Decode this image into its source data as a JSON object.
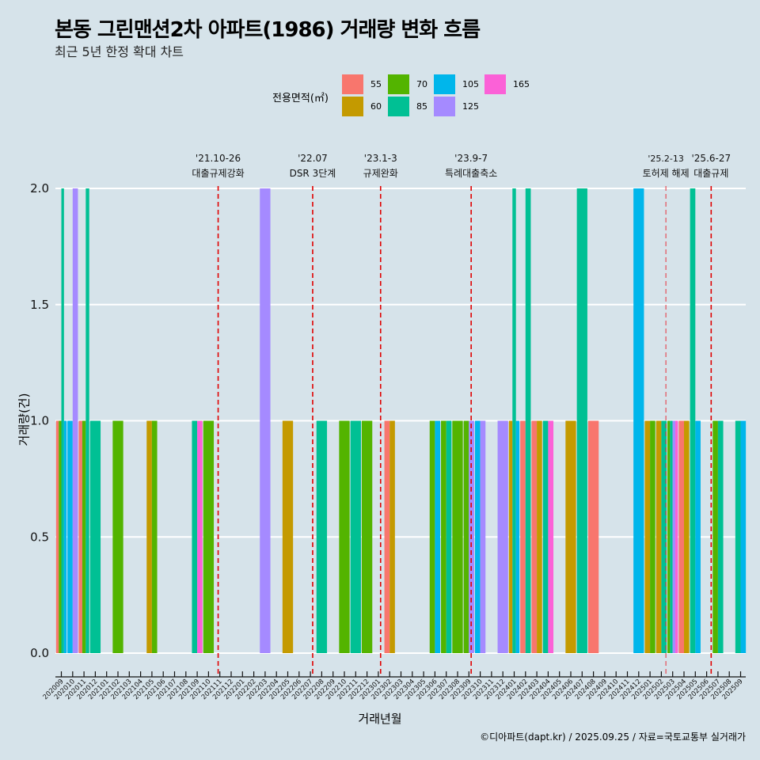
{
  "title": "본동 그린맨션2차 아파트(1986) 거래량 변화 흐름",
  "subtitle": "최근 5년 한정 확대 차트",
  "caption": "©디아파트(dapt.kr) / 2025.09.25 / 자료=국토교통부 실거래가",
  "legend": {
    "title": "전용면적(㎡)",
    "items": [
      {
        "label": "55",
        "color": "#F8766D"
      },
      {
        "label": "60",
        "color": "#C49A00"
      },
      {
        "label": "70",
        "color": "#53B400"
      },
      {
        "label": "85",
        "color": "#00C094"
      },
      {
        "label": "105",
        "color": "#00B6EB"
      },
      {
        "label": "125",
        "color": "#A58AFF"
      },
      {
        "label": "165",
        "color": "#FB61D7"
      }
    ]
  },
  "chart_data": {
    "type": "bar",
    "title": "본동 그린맨션2차 아파트(1986) 거래량 변화 흐름",
    "xlabel": "거래년월",
    "ylabel": "거래량(건)",
    "ylim": [
      0,
      2
    ],
    "yticks": [
      "0.0",
      "0.5",
      "1.0",
      "1.5",
      "2.0"
    ],
    "ytick_values": [
      0,
      0.5,
      1.0,
      1.5,
      2.0
    ],
    "grid": true,
    "legend_position": "top",
    "categories": [
      "202009",
      "202010",
      "202011",
      "202012",
      "202101",
      "202102",
      "202103",
      "202104",
      "202105",
      "202106",
      "202107",
      "202108",
      "202109",
      "202110",
      "202111",
      "202112",
      "202201",
      "202202",
      "202203",
      "202204",
      "202205",
      "202206",
      "202207",
      "202208",
      "202209",
      "202210",
      "202211",
      "202212",
      "202301",
      "202302",
      "202303",
      "202304",
      "202305",
      "202306",
      "202307",
      "202308",
      "202309",
      "202310",
      "202311",
      "202312",
      "202401",
      "202402",
      "202403",
      "202404",
      "202405",
      "202406",
      "202407",
      "202408",
      "202409",
      "202410",
      "202411",
      "202412",
      "202501",
      "202502",
      "202503",
      "202504",
      "202505",
      "202506",
      "202507",
      "202508",
      "202509"
    ],
    "bars": [
      {
        "month": "202009",
        "area": "55",
        "value": 1
      },
      {
        "month": "202009",
        "area": "70",
        "value": 1
      },
      {
        "month": "202009",
        "area": "85",
        "value": 2
      },
      {
        "month": "202009",
        "area": "105",
        "value": 1
      },
      {
        "month": "202010",
        "area": "105",
        "value": 1
      },
      {
        "month": "202010",
        "area": "125",
        "value": 2
      },
      {
        "month": "202011",
        "area": "55",
        "value": 1
      },
      {
        "month": "202011",
        "area": "70",
        "value": 1
      },
      {
        "month": "202011",
        "area": "85",
        "value": 2
      },
      {
        "month": "202012",
        "area": "85",
        "value": 1
      },
      {
        "month": "202102",
        "area": "70",
        "value": 1
      },
      {
        "month": "202105",
        "area": "60",
        "value": 1
      },
      {
        "month": "202105",
        "area": "70",
        "value": 1
      },
      {
        "month": "202109",
        "area": "85",
        "value": 1
      },
      {
        "month": "202109",
        "area": "165",
        "value": 1
      },
      {
        "month": "202110",
        "area": "70",
        "value": 1
      },
      {
        "month": "202203",
        "area": "125",
        "value": 2
      },
      {
        "month": "202205",
        "area": "60",
        "value": 1
      },
      {
        "month": "202208",
        "area": "85",
        "value": 1
      },
      {
        "month": "202210",
        "area": "70",
        "value": 1
      },
      {
        "month": "202211",
        "area": "85",
        "value": 1
      },
      {
        "month": "202212",
        "area": "70",
        "value": 1
      },
      {
        "month": "202302",
        "area": "55",
        "value": 1
      },
      {
        "month": "202302",
        "area": "60",
        "value": 1
      },
      {
        "month": "202306",
        "area": "70",
        "value": 1
      },
      {
        "month": "202306",
        "area": "105",
        "value": 1
      },
      {
        "month": "202307",
        "area": "70",
        "value": 1
      },
      {
        "month": "202307",
        "area": "85",
        "value": 1
      },
      {
        "month": "202308",
        "area": "70",
        "value": 1
      },
      {
        "month": "202309",
        "area": "70",
        "value": 1
      },
      {
        "month": "202309",
        "area": "125",
        "value": 1
      },
      {
        "month": "202310",
        "area": "105",
        "value": 1
      },
      {
        "month": "202310",
        "area": "125",
        "value": 1
      },
      {
        "month": "202312",
        "area": "125",
        "value": 1
      },
      {
        "month": "202401",
        "area": "60",
        "value": 1
      },
      {
        "month": "202401",
        "area": "85",
        "value": 2
      },
      {
        "month": "202401",
        "area": "105",
        "value": 1
      },
      {
        "month": "202402",
        "area": "55",
        "value": 1
      },
      {
        "month": "202402",
        "area": "85",
        "value": 2
      },
      {
        "month": "202403",
        "area": "55",
        "value": 1
      },
      {
        "month": "202403",
        "area": "60",
        "value": 1
      },
      {
        "month": "202404",
        "area": "85",
        "value": 1
      },
      {
        "month": "202404",
        "area": "165",
        "value": 1
      },
      {
        "month": "202406",
        "area": "60",
        "value": 1
      },
      {
        "month": "202407",
        "area": "85",
        "value": 2
      },
      {
        "month": "202408",
        "area": "55",
        "value": 1
      },
      {
        "month": "202412",
        "area": "105",
        "value": 2
      },
      {
        "month": "202501",
        "area": "60",
        "value": 1
      },
      {
        "month": "202501",
        "area": "70",
        "value": 1
      },
      {
        "month": "202502",
        "area": "60",
        "value": 1
      },
      {
        "month": "202502",
        "area": "85",
        "value": 1
      },
      {
        "month": "202503",
        "area": "70",
        "value": 1
      },
      {
        "month": "202503",
        "area": "85",
        "value": 1
      },
      {
        "month": "202503",
        "area": "125",
        "value": 1
      },
      {
        "month": "202503",
        "area": "165",
        "value": 1
      },
      {
        "month": "202504",
        "area": "55",
        "value": 1
      },
      {
        "month": "202504",
        "area": "60",
        "value": 1
      },
      {
        "month": "202505",
        "area": "85",
        "value": 2
      },
      {
        "month": "202505",
        "area": "105",
        "value": 1
      },
      {
        "month": "202507",
        "area": "70",
        "value": 1
      },
      {
        "month": "202507",
        "area": "85",
        "value": 1
      },
      {
        "month": "202509",
        "area": "85",
        "value": 1
      },
      {
        "month": "202509",
        "area": "105",
        "value": 1
      }
    ],
    "annotations": [
      {
        "month_pos": 13.85,
        "date": "'21.10-26",
        "label": "대출규제강화",
        "style": "dashed-strong"
      },
      {
        "month_pos": 22.2,
        "date": "'22.07",
        "label": "DSR 3단계",
        "style": "dashed-strong"
      },
      {
        "month_pos": 28.2,
        "date": "'23.1-3",
        "label": "규제완화",
        "style": "dashed-strong"
      },
      {
        "month_pos": 36.2,
        "date": "'23.9-7",
        "label": "특례대출축소",
        "style": "dashed-strong"
      },
      {
        "month_pos": 53.4,
        "date": "'25.2-13",
        "label": "토허제 해제",
        "style": "dashed-light"
      },
      {
        "month_pos": 57.4,
        "date": "'25.6-27",
        "label": "대출규제",
        "style": "dashed-strong"
      }
    ]
  }
}
